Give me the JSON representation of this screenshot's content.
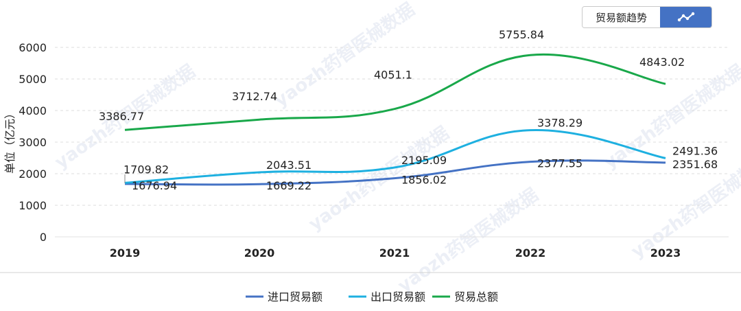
{
  "toolbar": {
    "trend_label": "贸易额趋势",
    "trend_icon": "line-chart-icon"
  },
  "watermark": "yaozh药智医械数据",
  "chart_data": {
    "type": "line",
    "ylabel": "单位（亿元）",
    "ylim": [
      0,
      6000
    ],
    "yticks": [
      0,
      1000,
      2000,
      3000,
      4000,
      5000,
      6000
    ],
    "categories": [
      "2019",
      "2020",
      "2021",
      "2022",
      "2023"
    ],
    "grid": "horizontal",
    "legend": "bottom",
    "series": [
      {
        "name": "进口贸易额",
        "color": "#4472c4",
        "values": [
          1676.94,
          1669.22,
          1856.02,
          2377.55,
          2351.68
        ]
      },
      {
        "name": "出口贸易额",
        "color": "#1eb0e0",
        "values": [
          1709.82,
          2043.51,
          2195.09,
          3378.29,
          2491.36
        ]
      },
      {
        "name": "贸易总额",
        "color": "#19a84a",
        "values": [
          3386.77,
          3712.74,
          4051.1,
          5755.84,
          4843.02
        ]
      }
    ]
  }
}
